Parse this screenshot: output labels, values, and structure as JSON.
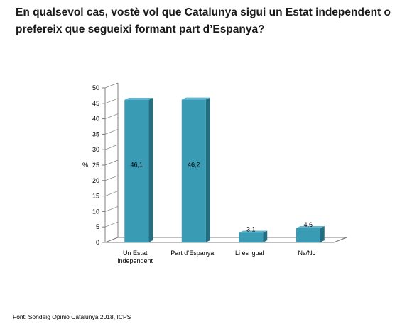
{
  "title": "En qualsevol cas, vostè vol que Catalunya sigui un Estat independent o prefereix que segueixi formant part d’Espanya?",
  "source": "Font: Sondeig Opinió Catalunya 2018, ICPS",
  "chart_data": {
    "type": "bar",
    "title": "En qualsevol cas, vostè vol que Catalunya sigui un Estat independent o prefereix que segueixi formant part d’Espanya?",
    "ylabel": "%",
    "xlabel": "",
    "ylim": [
      0,
      50
    ],
    "yticks": [
      0,
      5,
      10,
      15,
      20,
      25,
      30,
      35,
      40,
      45,
      50
    ],
    "categories": [
      [
        "Un Estat",
        "independent"
      ],
      [
        "Part d’Espanya"
      ],
      [
        "Li és igual"
      ],
      [
        "Ns/Nc"
      ]
    ],
    "values": [
      46.1,
      46.2,
      3.1,
      4.6
    ],
    "data_labels": [
      "46,1",
      "46,2",
      "3,1",
      "4,6"
    ],
    "grid": false,
    "legend": "none",
    "style": "3d-column",
    "colors": {
      "front": "#3a9bb5",
      "side": "#226e82",
      "top": "#5fb8cf",
      "floor": "#ffffff",
      "axis": "#7f7f7f"
    }
  }
}
